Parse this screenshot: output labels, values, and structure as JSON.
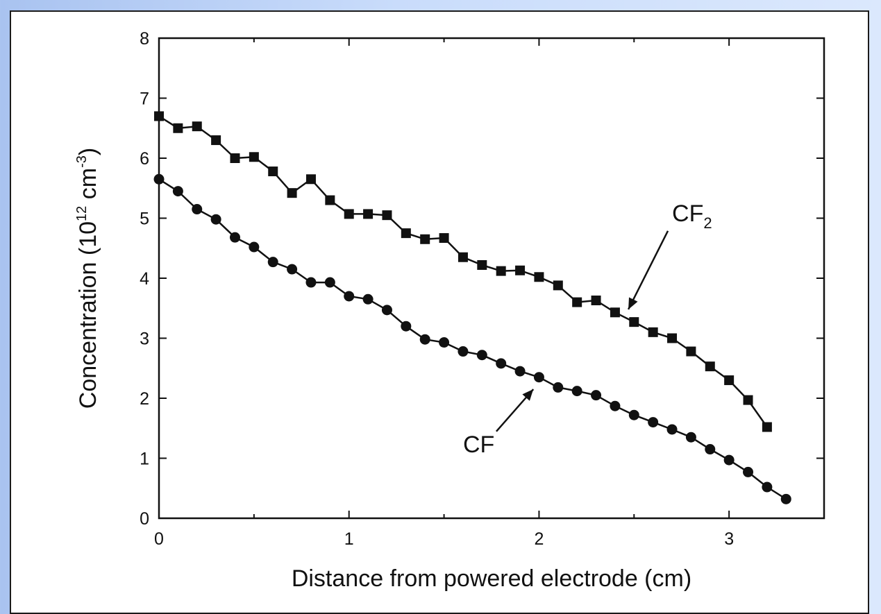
{
  "chart_data": {
    "type": "line",
    "xlabel": "Distance from powered electrode (cm)",
    "ylabel": {
      "prefix": "Concentration (10",
      "exp1": "12",
      "mid": " cm",
      "exp2": "-3",
      "suffix": ")"
    },
    "xlim": [
      0,
      3.5
    ],
    "ylim": [
      0,
      8
    ],
    "x_ticks": [
      "0",
      "1",
      "2",
      "3"
    ],
    "y_ticks": [
      "0",
      "1",
      "2",
      "3",
      "4",
      "5",
      "6",
      "7",
      "8"
    ],
    "grid": false,
    "legend": "none",
    "series": [
      {
        "name": "CF2",
        "marker": "square",
        "x": [
          0,
          0.1,
          0.2,
          0.3,
          0.4,
          0.5,
          0.6,
          0.7,
          0.8,
          0.9,
          1.0,
          1.1,
          1.2,
          1.3,
          1.4,
          1.5,
          1.6,
          1.7,
          1.8,
          1.9,
          2.0,
          2.1,
          2.2,
          2.3,
          2.4,
          2.5,
          2.6,
          2.7,
          2.8,
          2.9,
          3.0,
          3.1,
          3.2
        ],
        "y": [
          6.7,
          6.5,
          6.53,
          6.3,
          6.0,
          6.02,
          5.78,
          5.42,
          5.65,
          5.3,
          5.07,
          5.07,
          5.05,
          4.75,
          4.65,
          4.67,
          4.35,
          4.22,
          4.12,
          4.13,
          4.02,
          3.88,
          3.6,
          3.63,
          3.43,
          3.27,
          3.1,
          3.0,
          2.78,
          2.53,
          2.3,
          1.97,
          1.52
        ]
      },
      {
        "name": "CF",
        "marker": "circle",
        "x": [
          0,
          0.1,
          0.2,
          0.3,
          0.4,
          0.5,
          0.6,
          0.7,
          0.8,
          0.9,
          1.0,
          1.1,
          1.2,
          1.3,
          1.4,
          1.5,
          1.6,
          1.7,
          1.8,
          1.9,
          2.0,
          2.1,
          2.2,
          2.3,
          2.4,
          2.5,
          2.6,
          2.7,
          2.8,
          2.9,
          3.0,
          3.1,
          3.2,
          3.3
        ],
        "y": [
          5.65,
          5.45,
          5.15,
          4.98,
          4.68,
          4.52,
          4.27,
          4.15,
          3.93,
          3.93,
          3.7,
          3.65,
          3.47,
          3.2,
          2.98,
          2.93,
          2.78,
          2.72,
          2.58,
          2.45,
          2.35,
          2.18,
          2.12,
          2.05,
          1.87,
          1.72,
          1.6,
          1.48,
          1.35,
          1.15,
          0.97,
          0.77,
          0.52,
          0.32
        ]
      }
    ],
    "annotations": [
      {
        "text": "CF",
        "sub": "2",
        "x": 2.7,
        "y": 4.95,
        "arrow_to": [
          2.47,
          3.48
        ]
      },
      {
        "text": "CF",
        "sub": "",
        "x": 1.6,
        "y": 1.1,
        "arrow_to": [
          1.97,
          2.15
        ]
      }
    ]
  }
}
